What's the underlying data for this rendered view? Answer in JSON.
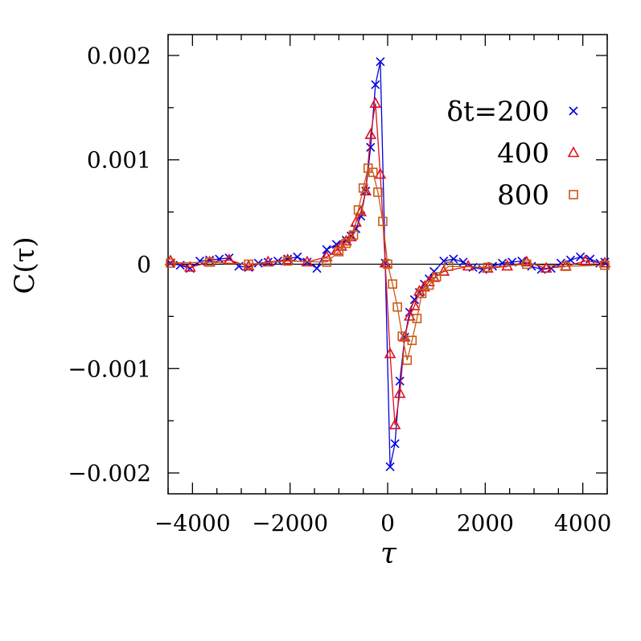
{
  "chart_data": {
    "type": "scatter",
    "xlabel": "τ",
    "ylabel": "C(τ)",
    "xlim": [
      -4500,
      4500
    ],
    "ylim": [
      -0.0022,
      0.0022
    ],
    "x_ticks": [
      -4000,
      -2000,
      0,
      2000,
      4000
    ],
    "x_tick_labels": [
      "−4000",
      "−2000",
      "0",
      "2000",
      "4000"
    ],
    "y_ticks": [
      -0.002,
      -0.001,
      0,
      0.001,
      0.002
    ],
    "y_tick_labels": [
      "−0.002",
      "−0.001",
      "0",
      "0.001",
      "0.002"
    ],
    "zero_line": true,
    "grid": false,
    "legend_position": "top-right",
    "series": [
      {
        "name": "δt=200",
        "marker": "cross",
        "color": "#0000e0",
        "x": [
          -4450,
          -4250,
          -4050,
          -3850,
          -3650,
          -3450,
          -3250,
          -3050,
          -2850,
          -2650,
          -2450,
          -2250,
          -2050,
          -1850,
          -1650,
          -1450,
          -1250,
          -1050,
          -850,
          -750,
          -650,
          -550,
          -450,
          -350,
          -250,
          -150,
          -50,
          50,
          150,
          250,
          350,
          450,
          550,
          650,
          750,
          850,
          950,
          1150,
          1350,
          1550,
          1750,
          1950,
          2150,
          2350,
          2550,
          2750,
          2950,
          3150,
          3350,
          3550,
          3750,
          3950,
          4150,
          4350,
          4450
        ],
        "y": [
          1e-05,
          -1e-05,
          -4e-05,
          3e-05,
          4e-05,
          5e-05,
          6e-05,
          -2e-05,
          -3e-05,
          1e-05,
          2e-05,
          3e-05,
          5e-05,
          7e-05,
          2e-05,
          -4e-05,
          0.00014,
          0.00019,
          0.00023,
          0.00027,
          0.00034,
          0.00046,
          0.0007,
          0.00112,
          0.00172,
          0.00194,
          1e-05,
          -0.00194,
          -0.00172,
          -0.00112,
          -0.0007,
          -0.00046,
          -0.00034,
          -0.00027,
          -0.00019,
          -0.00014,
          -7e-05,
          3e-05,
          5e-05,
          2e-05,
          -3e-05,
          -5e-05,
          -2e-05,
          1e-05,
          2e-05,
          3e-05,
          -2e-05,
          -5e-05,
          -4e-05,
          1e-05,
          4e-05,
          7e-05,
          5e-05,
          1e-05,
          2e-05
        ]
      },
      {
        "name": "400",
        "marker": "triangle",
        "color": "#e0101a",
        "x": [
          -4450,
          -4050,
          -3650,
          -3250,
          -2850,
          -2450,
          -2050,
          -1650,
          -1250,
          -1050,
          -950,
          -850,
          -750,
          -650,
          -550,
          -450,
          -350,
          -250,
          -150,
          -50,
          50,
          150,
          250,
          350,
          450,
          550,
          650,
          750,
          850,
          950,
          1150,
          1650,
          2050,
          2450,
          2850,
          3250,
          3650,
          4050,
          4450
        ],
        "y": [
          3e-05,
          -3e-05,
          2e-05,
          4e-05,
          -2e-05,
          2e-05,
          4e-05,
          2e-05,
          7e-05,
          0.00013,
          0.00017,
          0.00022,
          0.00026,
          0.0004,
          0.0005,
          0.0007,
          0.00124,
          0.00154,
          0.00086,
          1e-05,
          -0.00086,
          -0.00154,
          -0.00124,
          -0.0007,
          -0.0005,
          -0.0004,
          -0.00026,
          -0.00022,
          -0.00017,
          -0.00013,
          -7e-05,
          -2e-05,
          -4e-05,
          -2e-05,
          2e-05,
          -4e-05,
          -2e-05,
          3e-05,
          1e-05
        ]
      },
      {
        "name": "800",
        "marker": "square",
        "color": "#c85a18",
        "x": [
          -4450,
          -3650,
          -2850,
          -2050,
          -1250,
          -1000,
          -850,
          -700,
          -600,
          -500,
          -400,
          -300,
          -200,
          -100,
          0,
          100,
          200,
          300,
          400,
          500,
          600,
          700,
          850,
          1000,
          1250,
          2050,
          2850,
          3650,
          4450
        ],
        "y": [
          1e-05,
          2e-05,
          0.0,
          3e-05,
          2e-05,
          0.00012,
          0.0002,
          0.00028,
          0.00052,
          0.00073,
          0.00092,
          0.00088,
          0.00069,
          0.00041,
          0.0,
          -0.00019,
          -0.00041,
          -0.00069,
          -0.00092,
          -0.00073,
          -0.00052,
          -0.00028,
          -0.0002,
          -0.00012,
          -2e-05,
          -3e-05,
          0.0,
          -2e-05,
          -1e-05
        ]
      }
    ]
  }
}
